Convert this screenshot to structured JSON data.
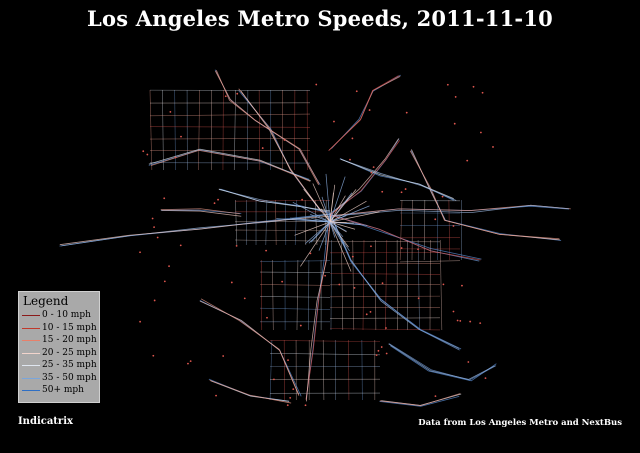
{
  "title": "Los Angeles Metro Speeds, 2011-11-10",
  "legend": {
    "title": "Legend",
    "items": [
      {
        "label": "0 - 10 mph",
        "color": "#8b1a1a"
      },
      {
        "label": "10 - 15 mph",
        "color": "#c0392b"
      },
      {
        "label": "15 - 20 mph",
        "color": "#e8806a"
      },
      {
        "label": "20 - 25 mph",
        "color": "#f2d4cc"
      },
      {
        "label": "25 - 35 mph",
        "color": "#dfe6f0"
      },
      {
        "label": "35 - 50 mph",
        "color": "#7aa6dc"
      },
      {
        "label": "50+ mph",
        "color": "#2f6fc4"
      }
    ]
  },
  "credits": {
    "left": "Indicatrix",
    "right": "Data from Los Angeles Metro and NextBus"
  },
  "colors": {
    "background": "#000000",
    "slow": "#d9534f",
    "medium": "#f2d4cc",
    "fast": "#5b8fd6"
  }
}
